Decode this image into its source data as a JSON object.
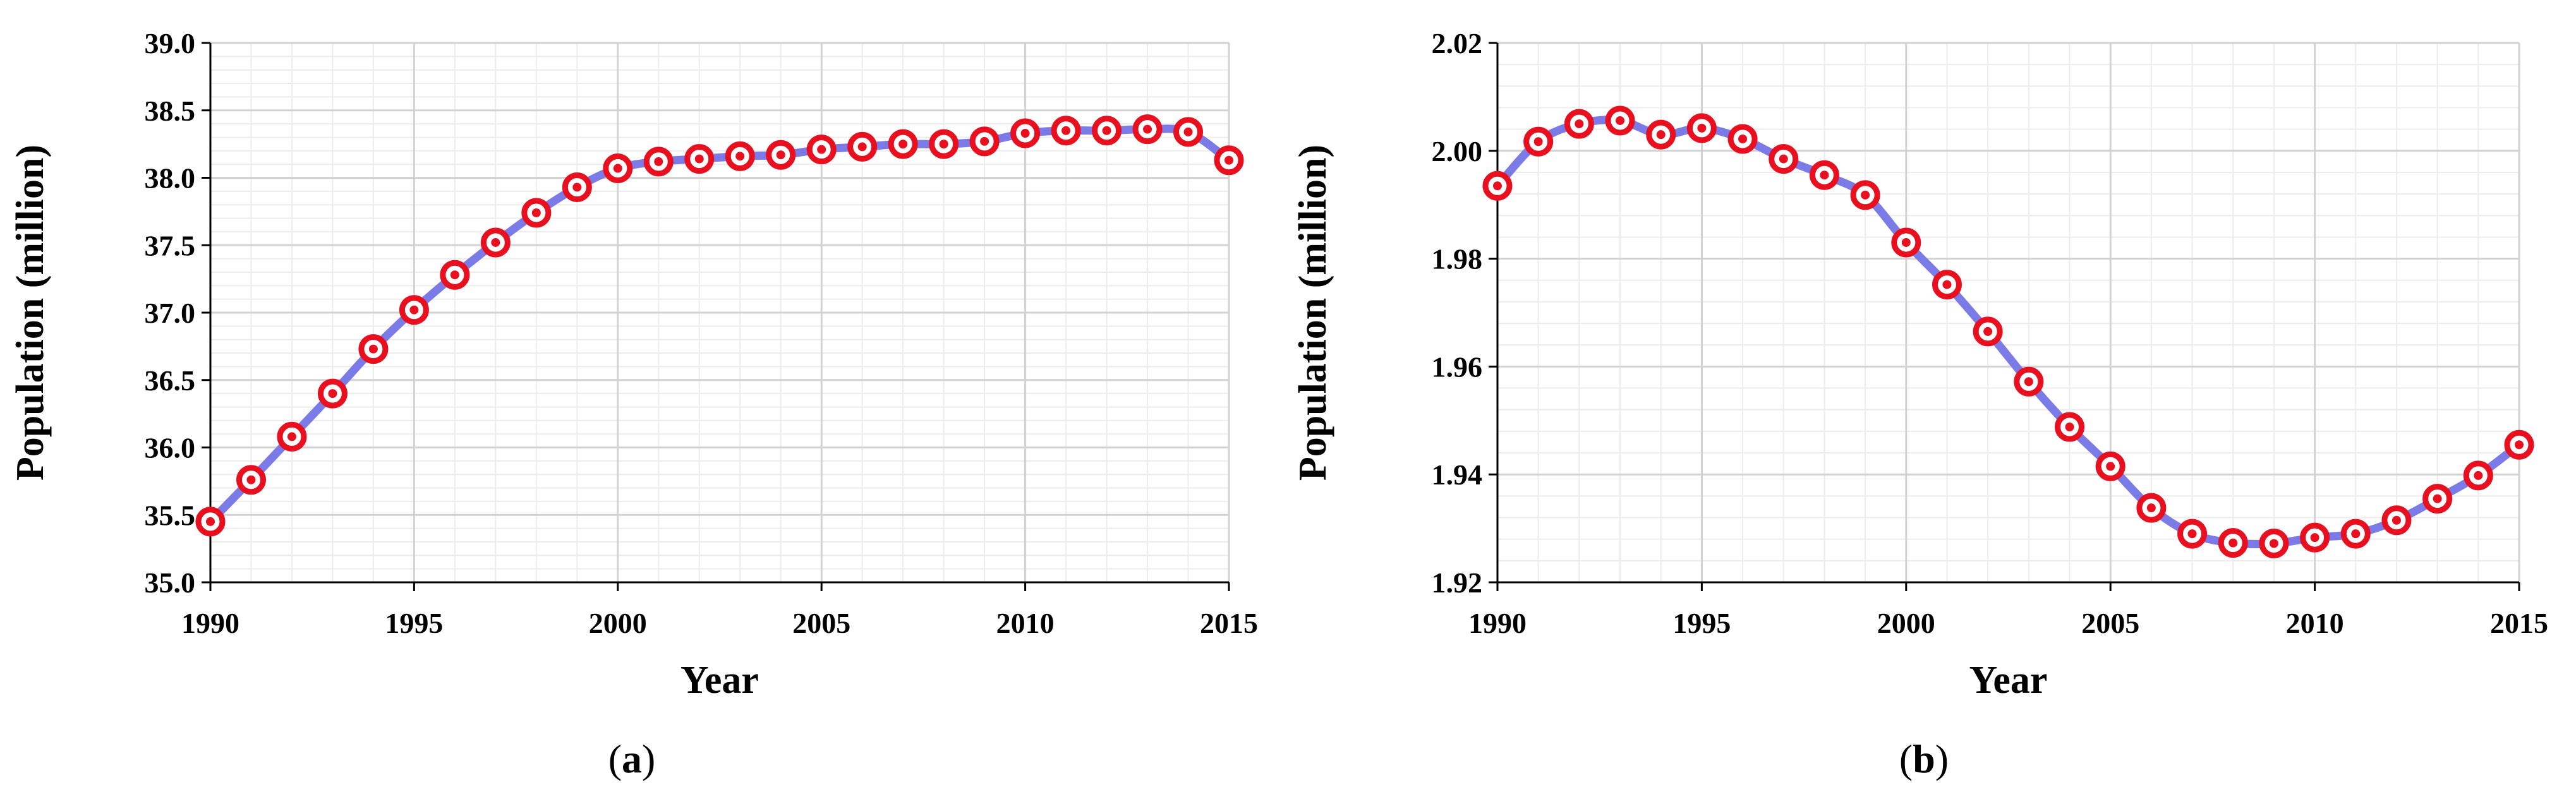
{
  "chart_data": [
    {
      "type": "line",
      "panel_label": "a",
      "xlabel": "Year",
      "ylabel": "Population (million)",
      "xlim": [
        1990,
        2015
      ],
      "ylim": [
        35.0,
        39.0
      ],
      "x_ticks": [
        "1990",
        "1995",
        "2000",
        "2005",
        "2010",
        "2015"
      ],
      "y_ticks": [
        "35.0",
        "35.5",
        "36.0",
        "36.5",
        "37.0",
        "37.5",
        "38.0",
        "38.5",
        "39.0"
      ],
      "grid": true,
      "legend": "none",
      "line_color": "#7b7be8",
      "marker_color": "#e8101e",
      "x": [
        1990,
        1991,
        1992,
        1993,
        1994,
        1995,
        1996,
        1997,
        1998,
        1999,
        2000,
        2001,
        2002,
        2003,
        2004,
        2005,
        2006,
        2007,
        2008,
        2009,
        2010,
        2011,
        2012,
        2013,
        2014,
        2015
      ],
      "series": [
        {
          "values": [
            35.45,
            35.76,
            36.08,
            36.4,
            36.73,
            37.02,
            37.28,
            37.52,
            37.74,
            37.93,
            38.07,
            38.12,
            38.14,
            38.16,
            38.17,
            38.21,
            38.23,
            38.25,
            38.25,
            38.27,
            38.33,
            38.35,
            38.35,
            38.36,
            38.34,
            38.13
          ]
        }
      ]
    },
    {
      "type": "line",
      "panel_label": "b",
      "xlabel": "Year",
      "ylabel": "Population (million)",
      "xlim": [
        1990,
        2015
      ],
      "ylim": [
        1.92,
        2.02
      ],
      "x_ticks": [
        "1990",
        "1995",
        "2000",
        "2005",
        "2010",
        "2015"
      ],
      "y_ticks": [
        "1.92",
        "1.94",
        "1.96",
        "1.98",
        "2.00",
        "2.02"
      ],
      "grid": true,
      "legend": "none",
      "line_color": "#7b7be8",
      "marker_color": "#e8101e",
      "x": [
        1990,
        1991,
        1992,
        1993,
        1994,
        1995,
        1996,
        1997,
        1998,
        1999,
        2000,
        2001,
        2002,
        2003,
        2004,
        2005,
        2006,
        2007,
        2008,
        2009,
        2010,
        2011,
        2012,
        2013,
        2014,
        2015
      ],
      "series": [
        {
          "values": [
            1.9935,
            2.0017,
            2.005,
            2.0056,
            2.003,
            2.0042,
            2.0022,
            1.9985,
            1.9955,
            1.9918,
            1.983,
            1.9752,
            1.9665,
            1.9572,
            1.9488,
            1.9415,
            1.9338,
            1.929,
            1.9273,
            1.9272,
            1.9283,
            1.929,
            1.9315,
            1.9355,
            1.9398,
            1.9455
          ]
        }
      ]
    }
  ]
}
